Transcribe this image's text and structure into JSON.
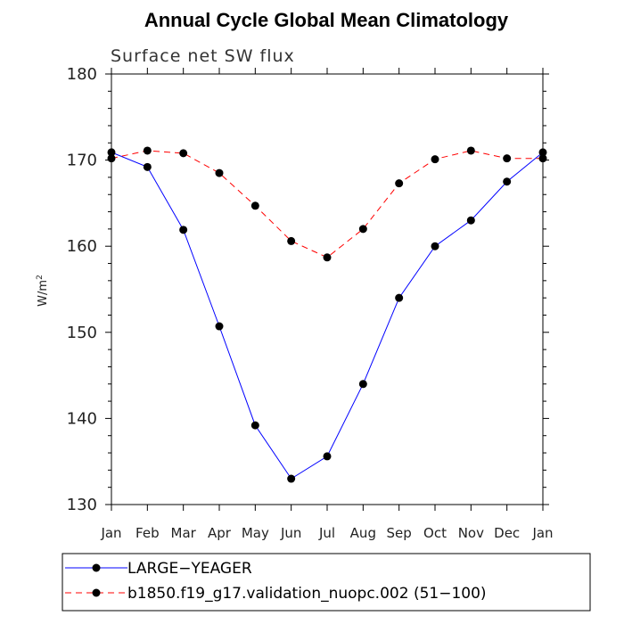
{
  "chart_data": {
    "type": "line",
    "title": "Annual Cycle Global Mean Climatology",
    "subtitle": "Surface net SW flux",
    "ylabel": "W/m",
    "ylabel_sup": "2",
    "xlabel": "",
    "ylim": [
      130,
      180
    ],
    "yticks": [
      130,
      140,
      150,
      160,
      170,
      180
    ],
    "categories": [
      "Jan",
      "Feb",
      "Mar",
      "Apr",
      "May",
      "Jun",
      "Jul",
      "Aug",
      "Sep",
      "Oct",
      "Nov",
      "Dec",
      "Jan"
    ],
    "grid": false,
    "legend": "bottom",
    "series": [
      {
        "name": "LARGE−YEAGER",
        "values": [
          170.9,
          169.2,
          161.9,
          150.7,
          139.2,
          133.0,
          135.6,
          144.0,
          154.0,
          160.0,
          163.0,
          167.5,
          170.9
        ],
        "color": "#0000ff",
        "dash": "solid"
      },
      {
        "name": "b1850.f19_g17.validation_nuopc.002 (51−100)",
        "values": [
          170.2,
          171.1,
          170.8,
          168.5,
          164.7,
          160.6,
          158.7,
          162.0,
          167.3,
          170.1,
          171.1,
          170.2,
          170.2
        ],
        "color": "#ff0000",
        "dash": "dashed"
      }
    ]
  }
}
